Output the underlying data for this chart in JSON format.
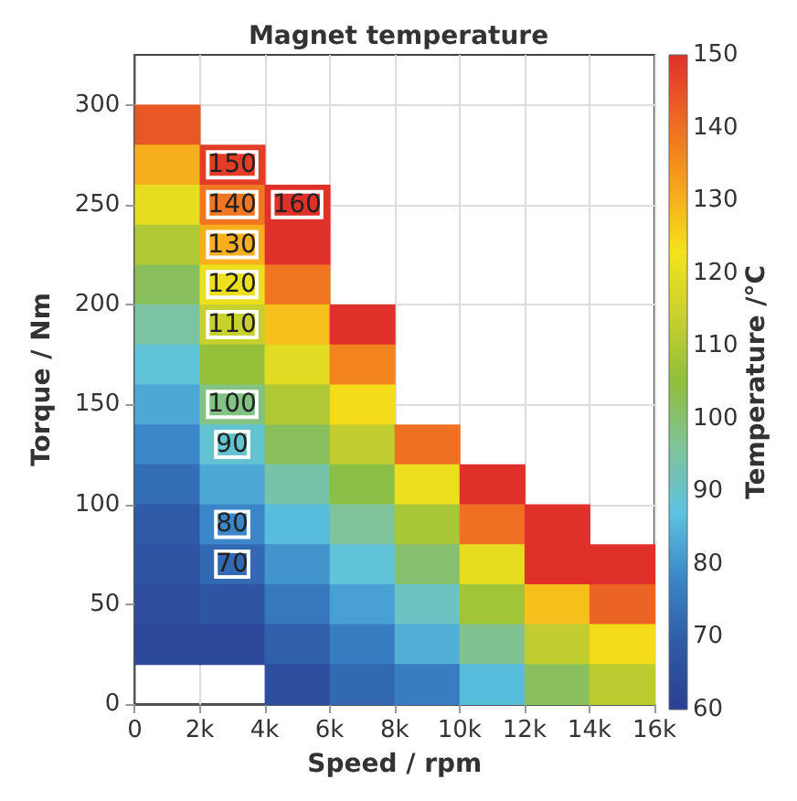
{
  "chart_data": {
    "type": "heatmap",
    "title": "Magnet temperature",
    "xlabel": "Speed / rpm",
    "ylabel": "Torque / Nm",
    "clabel": "Temperature /°C",
    "x": [
      1000,
      3000,
      5000,
      7000,
      9000,
      11000,
      13000,
      15000
    ],
    "y": [
      290,
      270,
      250,
      230,
      210,
      190,
      170,
      150,
      130,
      110,
      90,
      70,
      50,
      30,
      10
    ],
    "cells": [
      [
        144,
        null,
        null,
        null,
        null,
        null,
        null,
        null
      ],
      [
        130,
        148,
        null,
        null,
        null,
        null,
        null,
        null
      ],
      [
        120,
        139,
        165,
        null,
        null,
        null,
        null,
        null
      ],
      [
        110,
        130,
        154,
        null,
        null,
        null,
        null,
        null
      ],
      [
        102,
        121,
        139,
        null,
        null,
        null,
        null,
        null
      ],
      [
        95,
        114,
        128,
        157,
        null,
        null,
        null,
        null
      ],
      [
        88,
        106,
        119,
        137,
        null,
        null,
        null,
        null
      ],
      [
        83,
        98,
        110,
        124,
        null,
        null,
        null,
        null
      ],
      [
        78,
        89,
        102,
        113,
        140,
        null,
        null,
        null
      ],
      [
        73,
        83,
        94,
        104,
        121,
        162,
        null,
        null
      ],
      [
        69,
        78,
        86,
        96,
        109,
        140,
        165,
        null
      ],
      [
        67,
        72,
        80,
        88,
        100,
        120,
        151,
        165
      ],
      [
        65,
        67,
        75,
        82,
        91,
        108,
        128,
        142
      ],
      [
        63,
        63,
        70,
        76,
        84,
        97,
        113,
        124
      ],
      [
        null,
        null,
        65,
        72,
        76,
        86,
        102,
        112
      ]
    ],
    "clim": [
      60,
      150
    ],
    "cticks": [
      60,
      70,
      80,
      90,
      100,
      110,
      120,
      130,
      140,
      150
    ],
    "xlim": [
      0,
      16000
    ],
    "xticks": [
      0,
      {
        "value": 2000,
        "label": "2k"
      },
      {
        "value": 4000,
        "label": "4k"
      },
      {
        "value": 6000,
        "label": "6k"
      },
      {
        "value": 8000,
        "label": "8k"
      },
      {
        "value": 10000,
        "label": "10k"
      },
      {
        "value": 12000,
        "label": "12k"
      },
      {
        "value": 14000,
        "label": "14k"
      },
      {
        "value": 16000,
        "label": "16k"
      }
    ],
    "ylim": [
      0,
      325
    ],
    "yticks": [
      0,
      50,
      100,
      150,
      200,
      250,
      300
    ],
    "grid": true,
    "annotations": [
      "70",
      "80",
      "90",
      "100",
      "110",
      "120",
      "130",
      "140",
      "150",
      "160"
    ]
  }
}
